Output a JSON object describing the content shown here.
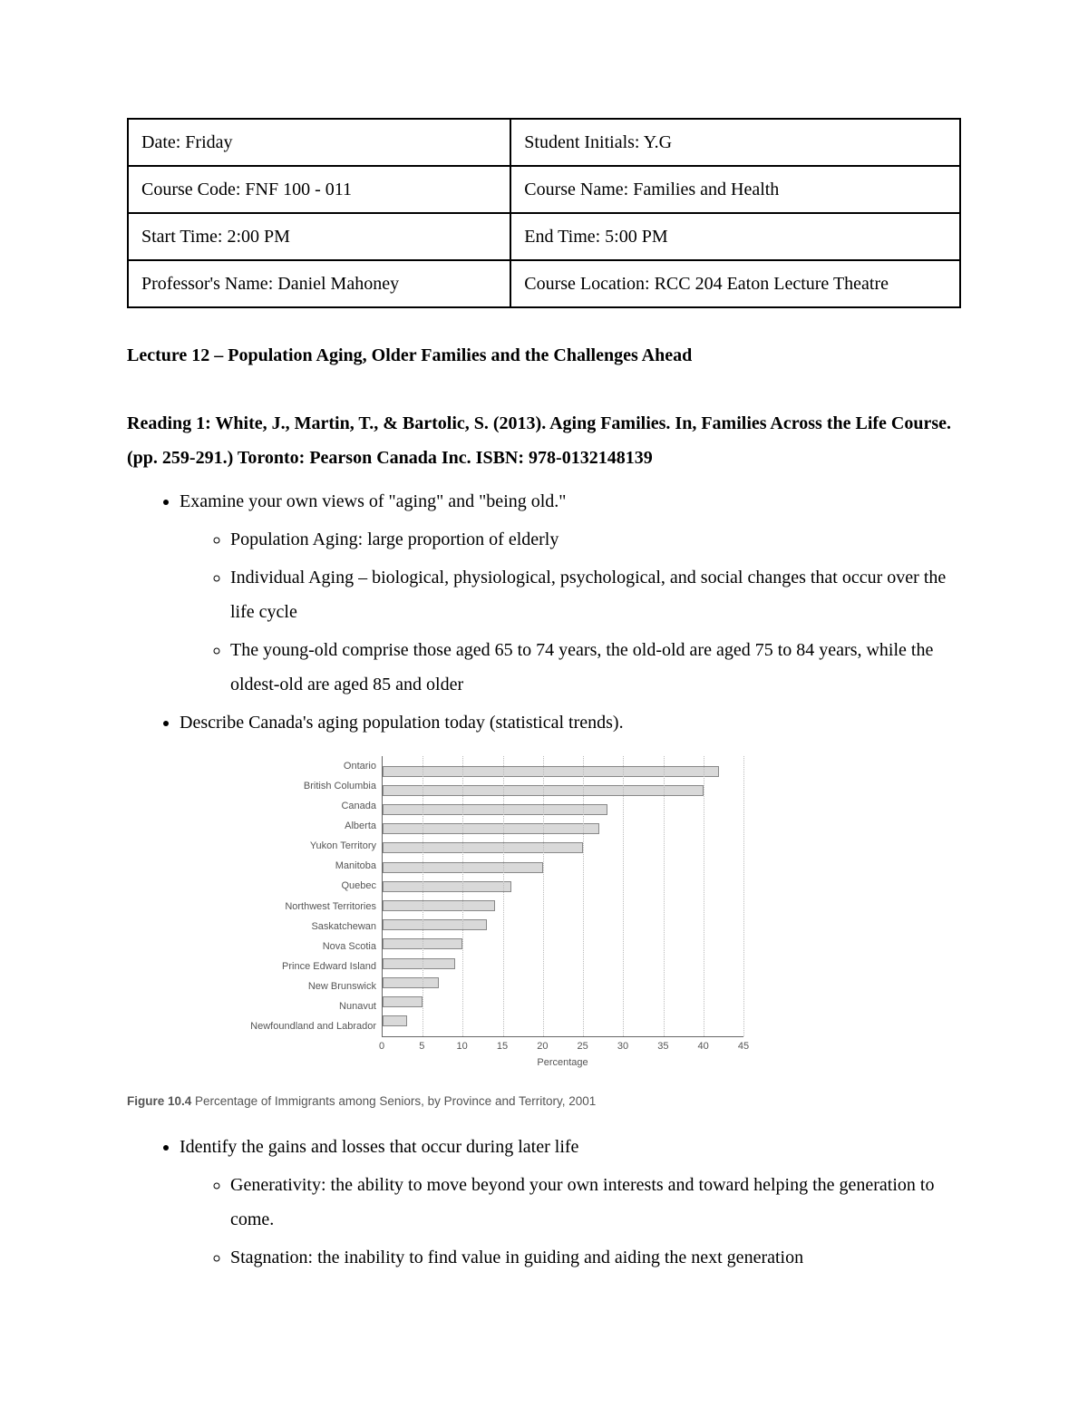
{
  "info": {
    "date": "Date:  Friday",
    "initials": "Student Initials: Y.G",
    "code": "Course Code: FNF 100 - 011",
    "cname": "Course Name: Families and Health",
    "start": "Start Time: 2:00 PM",
    "end": "End Time: 5:00 PM",
    "prof": "Professor's Name: Daniel Mahoney",
    "loc": "Course Location:  RCC 204 Eaton Lecture Theatre"
  },
  "lecture_title": "Lecture 12 – Population Aging, Older Families and the Challenges Ahead",
  "reading_title": "Reading 1: White, J., Martin, T., & Bartolic, S. (2013). Aging Families. In, Families Across the Life Course. (pp. 259-291.) Toronto: Pearson Canada Inc. ISBN: 978-0132148139",
  "b1": {
    "a": "Examine your own views of \"aging\" and \"being old.\"",
    "s1": "Population Aging:  large proportion of elderly",
    "s2": "Individual Aging – biological, physiological, psychological, and social changes that occur over the life cycle",
    "s3": "The young-old comprise those aged 65 to 74 years, the old-old are aged 75 to 84 years, while the oldest-old are aged 85 and older",
    "b": "Describe Canada's aging population today (statistical trends)."
  },
  "b2": {
    "a": "Identify the gains and losses that occur during later life",
    "s1": "Generativity: the ability to move beyond your own interests and toward helping the generation to come.",
    "s2": "Stagnation: the inability to find value in guiding and aiding the next generation"
  },
  "chart": {
    "type": "bar-horizontal",
    "xlim": [
      0,
      45
    ],
    "xtick_step": 5,
    "xlabel": "Percentage",
    "bar_fill": "#d9d9d9",
    "bar_border": "#888888",
    "grid_color": "#bbbbbb",
    "axis_color": "#666666",
    "label_fontsize": 11,
    "caption_lead": "Figure 10.4",
    "caption_rest": " Percentage of Immigrants among Seniors, by Province and Territory, 2001",
    "rows": [
      {
        "label": "Ontario",
        "value": 42
      },
      {
        "label": "British Columbia",
        "value": 40
      },
      {
        "label": "Canada",
        "value": 28
      },
      {
        "label": "Alberta",
        "value": 27
      },
      {
        "label": "Yukon Territory",
        "value": 25
      },
      {
        "label": "Manitoba",
        "value": 20
      },
      {
        "label": "Quebec",
        "value": 16
      },
      {
        "label": "Northwest Territories",
        "value": 14
      },
      {
        "label": "Saskatchewan",
        "value": 13
      },
      {
        "label": "Nova Scotia",
        "value": 10
      },
      {
        "label": "Prince Edward Island",
        "value": 9
      },
      {
        "label": "New Brunswick",
        "value": 7
      },
      {
        "label": "Nunavut",
        "value": 5
      },
      {
        "label": "Newfoundland and Labrador",
        "value": 3
      }
    ]
  }
}
